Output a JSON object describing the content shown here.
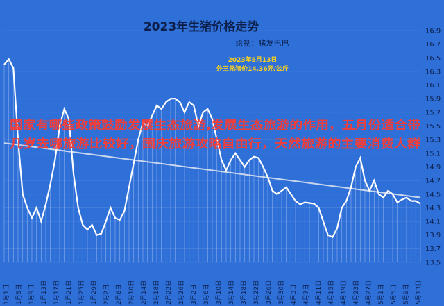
{
  "chart_data": {
    "type": "line",
    "title": "2023年生猪价格走势",
    "subtitle": "绘制：猪友巴巴",
    "annotation": {
      "date_label": "2023年5月13日",
      "price_label": "外三元猪价14.36元/公斤"
    },
    "overlay_text": "国家有哪些政策鼓励发展生态旅游,发展生态旅游的作用，五月份适合带几岁去哪旅游比较好，国庆旅游攻略自由行，天然旅游的主要消费人群",
    "ylim": [
      13.5,
      16.9
    ],
    "yticks": [
      13.5,
      13.7,
      13.9,
      14.1,
      14.3,
      14.5,
      14.7,
      14.9,
      15.1,
      15.3,
      15.5,
      15.7,
      15.9,
      16.1,
      16.3,
      16.5,
      16.7,
      16.9
    ],
    "ytick_labels": [
      "13.5",
      "13.7",
      "13.9",
      "14.1",
      "14.3",
      "14.5",
      "14.7",
      "14.9",
      "15.1",
      "15.3",
      "15.5",
      "15.7",
      "15.9",
      "16.1",
      "16.3",
      "16.5",
      "16.7",
      "16.9"
    ],
    "x_labels": [
      "1月1日",
      "1月5日",
      "1月9日",
      "1月13日",
      "1月17日",
      "1月21日",
      "1月25日",
      "1月29日",
      "2月2日",
      "2月6日",
      "2月10日",
      "2月14日",
      "2月18日",
      "2月22日",
      "2月26日",
      "3月2日",
      "3月6日",
      "3月10日",
      "3月14日",
      "3月18日",
      "3月22日",
      "3月26日",
      "3月30日",
      "4月3日",
      "4月7日",
      "4月11日",
      "4月15日",
      "4月19日",
      "4月23日",
      "4月27日",
      "5月1日",
      "5月5日",
      "5月9日",
      "5月13日"
    ],
    "series": [
      {
        "values": [
          16.4,
          16.48,
          16.35,
          15.3,
          14.5,
          14.3,
          14.15,
          14.3,
          14.1,
          14.35,
          14.65,
          15.0,
          15.5,
          15.75,
          15.6,
          14.8,
          14.3,
          14.05,
          13.98,
          14.05,
          13.9,
          13.92,
          14.1,
          14.3,
          14.15,
          14.12,
          14.25,
          14.6,
          14.95,
          15.3,
          15.55,
          15.5,
          15.65,
          15.8,
          15.75,
          15.85,
          15.9,
          15.9,
          15.85,
          15.7,
          15.85,
          15.8,
          15.5,
          15.7,
          15.75,
          15.6,
          15.3,
          15.0,
          14.85,
          15.0,
          15.1,
          15.0,
          14.9,
          15.0,
          15.05,
          15.03,
          14.9,
          14.75,
          14.55,
          14.5,
          14.55,
          14.6,
          14.5,
          14.4,
          14.35,
          14.38,
          14.37,
          14.36,
          14.3,
          14.1,
          13.9,
          13.87,
          14.0,
          14.3,
          14.4,
          14.6,
          14.9,
          15.03,
          14.7,
          14.55,
          14.7,
          14.5,
          14.45,
          14.55,
          14.5,
          14.38,
          14.42,
          14.45,
          14.4,
          14.4,
          14.36
        ],
        "color": "#ffffff"
      },
      {
        "values": [
          15.25,
          14.45
        ],
        "color": "#c8d7ee"
      }
    ],
    "grid": true,
    "legend": "none"
  },
  "colors": {
    "background": "#2f6fd8",
    "text": "#0b1f4a",
    "line": "#ffffff",
    "trend": "#c8d7ee",
    "annotation": "#ffd21a",
    "watermark": "#ff3b2f",
    "grid": "#4f86de"
  }
}
